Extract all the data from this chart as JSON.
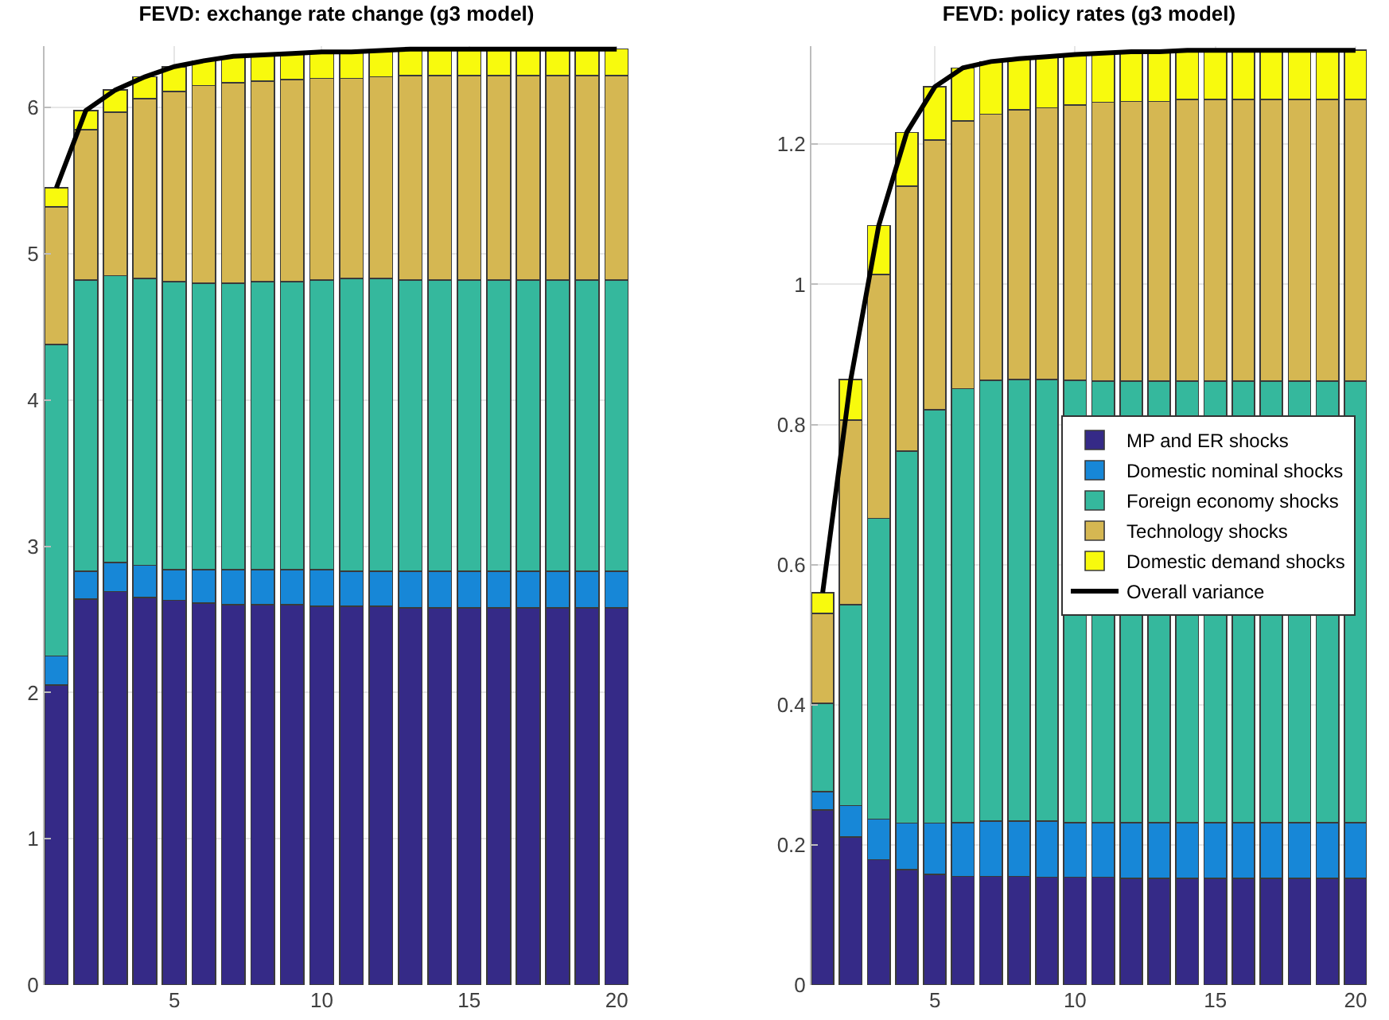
{
  "chart_data": [
    {
      "type": "bar",
      "title": "FEVD: exchange rate change (g3 model)",
      "stacked": true,
      "grid": true,
      "legend": false,
      "x": [
        1,
        2,
        3,
        4,
        5,
        6,
        7,
        8,
        9,
        10,
        11,
        12,
        13,
        14,
        15,
        16,
        17,
        18,
        19,
        20
      ],
      "xlim": [
        0.6,
        20.4
      ],
      "xticks": [
        5,
        10,
        15,
        20
      ],
      "ylim": [
        0,
        6.42
      ],
      "yticks": [
        0,
        1,
        2,
        3,
        4,
        5,
        6
      ],
      "series": [
        {
          "color": "#352a87",
          "values": [
            2.05,
            2.64,
            2.69,
            2.65,
            2.63,
            2.61,
            2.6,
            2.6,
            2.6,
            2.59,
            2.59,
            2.59,
            2.58,
            2.58,
            2.58,
            2.58,
            2.58,
            2.58,
            2.58,
            2.58
          ]
        },
        {
          "color": "#1787d7",
          "values": [
            0.2,
            0.19,
            0.2,
            0.22,
            0.21,
            0.23,
            0.24,
            0.24,
            0.24,
            0.25,
            0.24,
            0.24,
            0.25,
            0.25,
            0.25,
            0.25,
            0.25,
            0.25,
            0.25,
            0.25
          ]
        },
        {
          "color": "#35b89d",
          "values": [
            2.13,
            1.99,
            1.96,
            1.96,
            1.97,
            1.96,
            1.96,
            1.97,
            1.97,
            1.98,
            2.0,
            2.0,
            1.99,
            1.99,
            1.99,
            1.99,
            1.99,
            1.99,
            1.99,
            1.99
          ]
        },
        {
          "color": "#d5b752",
          "values": [
            0.94,
            1.03,
            1.12,
            1.23,
            1.3,
            1.35,
            1.37,
            1.37,
            1.38,
            1.38,
            1.37,
            1.38,
            1.4,
            1.4,
            1.4,
            1.4,
            1.4,
            1.4,
            1.4,
            1.4
          ]
        },
        {
          "color": "#f8fa0d",
          "values": [
            0.13,
            0.13,
            0.15,
            0.15,
            0.17,
            0.17,
            0.18,
            0.18,
            0.18,
            0.18,
            0.18,
            0.18,
            0.18,
            0.18,
            0.18,
            0.18,
            0.18,
            0.18,
            0.18,
            0.18
          ]
        },
        {
          "type": "line",
          "color": "#000000",
          "values": [
            5.45,
            5.98,
            6.12,
            6.21,
            6.28,
            6.32,
            6.35,
            6.36,
            6.37,
            6.38,
            6.38,
            6.39,
            6.4,
            6.4,
            6.4,
            6.4,
            6.4,
            6.4,
            6.4,
            6.4
          ]
        }
      ]
    },
    {
      "type": "bar",
      "title": "FEVD: policy rates (g3 model)",
      "stacked": true,
      "grid": true,
      "legend": "right",
      "x": [
        1,
        2,
        3,
        4,
        5,
        6,
        7,
        8,
        9,
        10,
        11,
        12,
        13,
        14,
        15,
        16,
        17,
        18,
        19,
        20
      ],
      "xlim": [
        0.6,
        20.4
      ],
      "xticks": [
        5,
        10,
        15,
        20
      ],
      "ylim": [
        0,
        1.34
      ],
      "yticks": [
        0,
        0.2,
        0.4,
        0.6,
        0.8,
        1,
        1.2
      ],
      "series": [
        {
          "name": "MP and ER shocks",
          "color": "#352a87",
          "values": [
            0.25,
            0.211,
            0.179,
            0.165,
            0.158,
            0.155,
            0.155,
            0.155,
            0.154,
            0.154,
            0.154,
            0.152,
            0.152,
            0.152,
            0.152,
            0.152,
            0.152,
            0.152,
            0.152,
            0.152
          ]
        },
        {
          "name": "Domestic nominal shocks",
          "color": "#1787d7",
          "values": [
            0.026,
            0.045,
            0.058,
            0.066,
            0.073,
            0.077,
            0.079,
            0.079,
            0.08,
            0.078,
            0.078,
            0.08,
            0.08,
            0.08,
            0.08,
            0.08,
            0.08,
            0.08,
            0.08,
            0.08
          ]
        },
        {
          "name": "Foreign economy shocks",
          "color": "#35b89d",
          "values": [
            0.126,
            0.287,
            0.429,
            0.531,
            0.59,
            0.619,
            0.629,
            0.63,
            0.63,
            0.631,
            0.63,
            0.63,
            0.63,
            0.63,
            0.63,
            0.63,
            0.63,
            0.63,
            0.63,
            0.63
          ]
        },
        {
          "name": "Technology shocks",
          "color": "#d5b752",
          "values": [
            0.128,
            0.263,
            0.348,
            0.378,
            0.385,
            0.382,
            0.38,
            0.385,
            0.388,
            0.393,
            0.398,
            0.399,
            0.399,
            0.402,
            0.402,
            0.402,
            0.402,
            0.402,
            0.402,
            0.402
          ]
        },
        {
          "name": "Domestic demand shocks",
          "color": "#f8fa0d",
          "values": [
            0.03,
            0.058,
            0.07,
            0.077,
            0.076,
            0.076,
            0.075,
            0.073,
            0.073,
            0.072,
            0.07,
            0.071,
            0.071,
            0.07,
            0.07,
            0.07,
            0.07,
            0.07,
            0.07,
            0.07
          ]
        },
        {
          "name": "Overall variance",
          "type": "line",
          "color": "#000000",
          "values": [
            0.56,
            0.864,
            1.084,
            1.217,
            1.282,
            1.309,
            1.318,
            1.322,
            1.325,
            1.328,
            1.33,
            1.332,
            1.332,
            1.334,
            1.334,
            1.334,
            1.334,
            1.334,
            1.334,
            1.334
          ]
        }
      ]
    }
  ]
}
